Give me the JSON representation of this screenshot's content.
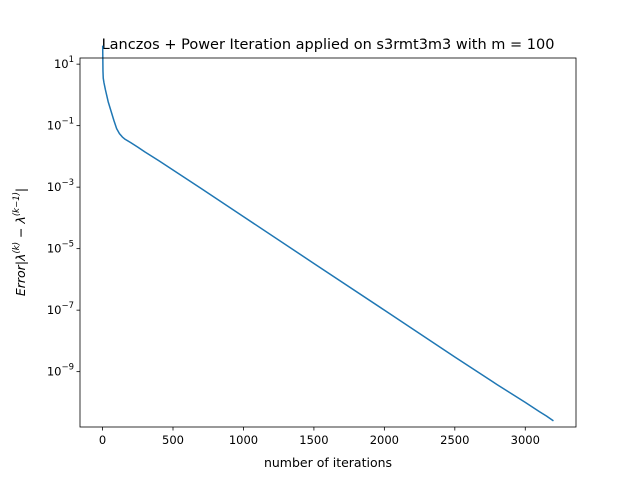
{
  "chart_data": {
    "type": "line",
    "title": "Lanczos + Power Iteration applied on s3rmt3m3 with m = 100",
    "xlabel": "number of iterations",
    "ylabel": "Error|λ(k) − λ(k−1)|",
    "ylabel_parts": {
      "prefix": "Error",
      "lambda": "λ",
      "sup_k": "(k)",
      "minus": " − ",
      "sup_k_minus_1": "(k−1)"
    },
    "yscale": "log",
    "xlim": [
      -160,
      3360
    ],
    "ylim_log10": [
      -10.8,
      1.2
    ],
    "x_ticks": [
      {
        "value": 0,
        "label": "0"
      },
      {
        "value": 500,
        "label": "500"
      },
      {
        "value": 1000,
        "label": "1000"
      },
      {
        "value": 1500,
        "label": "1500"
      },
      {
        "value": 2000,
        "label": "2000"
      },
      {
        "value": 2500,
        "label": "2500"
      },
      {
        "value": 3000,
        "label": "3000"
      }
    ],
    "y_ticks": [
      {
        "exp": 1,
        "base": "10",
        "sup": "1"
      },
      {
        "exp": -1,
        "base": "10",
        "sup": "−1"
      },
      {
        "exp": -3,
        "base": "10",
        "sup": "−3"
      },
      {
        "exp": -5,
        "base": "10",
        "sup": "−5"
      },
      {
        "exp": -7,
        "base": "10",
        "sup": "−7"
      },
      {
        "exp": -9,
        "base": "10",
        "sup": "−9"
      }
    ],
    "grid": false,
    "series": [
      {
        "color": "#1f77b4",
        "x": [
          1,
          2,
          3,
          5,
          10,
          20,
          40,
          60,
          80,
          100,
          120,
          140,
          160,
          200,
          250,
          300,
          400,
          500,
          700,
          1000,
          1500,
          2000,
          2500,
          2800,
          3000,
          3100,
          3150,
          3200
        ],
        "y": [
          40,
          15,
          6,
          3.5,
          2.5,
          1.5,
          0.6,
          0.3,
          0.15,
          0.08,
          0.055,
          0.043,
          0.036,
          0.028,
          0.02,
          0.014,
          0.0072,
          0.0036,
          0.0009,
          0.00011,
          3.3e-06,
          1e-07,
          3e-09,
          3.8e-10,
          1e-10,
          5e-11,
          3.6e-11,
          2.5e-11
        ]
      }
    ]
  }
}
